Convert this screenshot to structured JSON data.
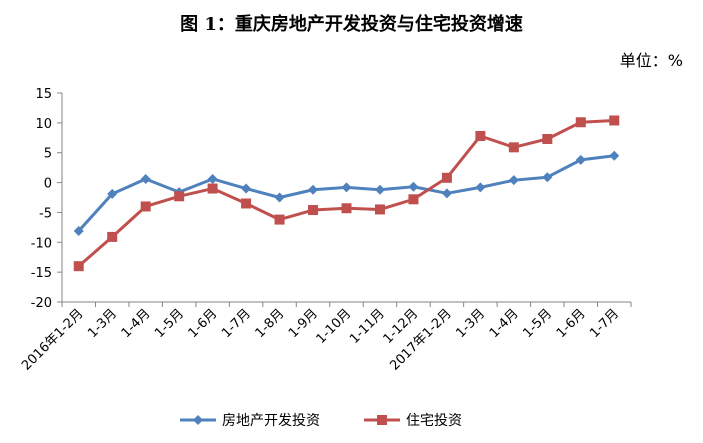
{
  "chart_data": {
    "type": "line",
    "title": "图 1：重庆房地产开发投资与住宅投资增速",
    "unit": "单位：%",
    "categories": [
      "2016年1-2月",
      "1-3月",
      "1-4月",
      "1-5月",
      "1-6月",
      "1-7月",
      "1-8月",
      "1-9月",
      "1-10月",
      "1-11月",
      "1-12月",
      "2017年1-2月",
      "1-3月",
      "1-4月",
      "1-5月",
      "1-6月",
      "1-7月"
    ],
    "ylim": [
      -20,
      15
    ],
    "yticks": [
      15,
      10,
      5,
      0,
      -5,
      -10,
      -15,
      -20
    ],
    "grid": false,
    "legend_position": "bottom",
    "series": [
      {
        "name": "房地产开发投资",
        "color": "#4F81BD",
        "marker": "diamond",
        "values": [
          -8.1,
          -1.9,
          0.6,
          -1.6,
          0.6,
          -1.0,
          -2.5,
          -1.2,
          -0.8,
          -1.2,
          -0.7,
          -1.8,
          -0.8,
          0.4,
          0.9,
          3.8,
          4.5
        ]
      },
      {
        "name": "住宅投资",
        "color": "#C0504D",
        "marker": "square",
        "values": [
          -14.0,
          -9.1,
          -4.0,
          -2.3,
          -1.0,
          -3.5,
          -6.2,
          -4.6,
          -4.3,
          -4.5,
          -2.8,
          0.8,
          7.8,
          5.9,
          7.3,
          10.1,
          10.4
        ]
      }
    ]
  }
}
